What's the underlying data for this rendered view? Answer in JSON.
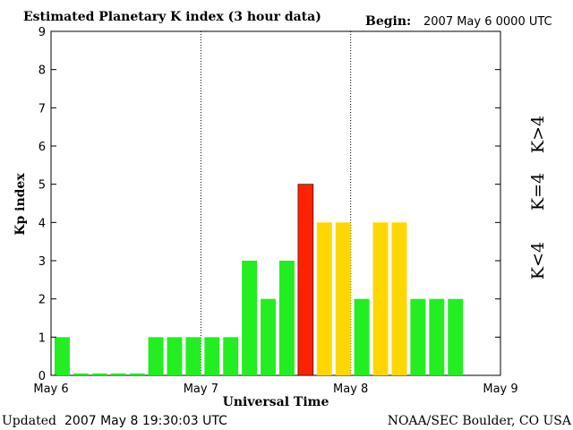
{
  "header": {
    "title": "Estimated Planetary K index (3 hour data)",
    "begin_label": "Begin:",
    "begin_value": "2007 May 6 0000 UTC"
  },
  "footer": {
    "updated_label": "Updated",
    "updated_value": "2007 May  8 19:30:03 UTC",
    "source": "NOAA/SEC Boulder, CO USA"
  },
  "legend": {
    "high": "K>4",
    "mid": "K=4",
    "low": "K<4"
  },
  "colors": {
    "low": "#22ee22",
    "mid": "#ffd700",
    "high": "#ff2200",
    "axis": "#000000",
    "divider": "#000000"
  },
  "chart_data": {
    "type": "bar",
    "title": "Estimated Planetary K index (3 hour data)",
    "xlabel": "Universal Time",
    "ylabel": "Kp index",
    "ylim": [
      0,
      9
    ],
    "yticks": [
      "0",
      "1",
      "2",
      "3",
      "4",
      "5",
      "6",
      "7",
      "8",
      "9"
    ],
    "xticks": [
      "May 6",
      "May 7",
      "May 8",
      "May 9"
    ],
    "slots_total": 24,
    "grid": false,
    "day_dividers": "dotted vertical lines at day boundaries",
    "values": [
      1,
      0.05,
      0.05,
      0.05,
      0.05,
      1,
      1,
      1,
      1,
      1,
      3,
      2,
      3,
      5,
      4,
      4,
      2,
      4,
      4,
      2,
      2,
      2
    ],
    "categories": [
      "May 6 00",
      "May 6 03",
      "May 6 06",
      "May 6 09",
      "May 6 12",
      "May 6 15",
      "May 6 18",
      "May 6 21",
      "May 7 00",
      "May 7 03",
      "May 7 06",
      "May 7 09",
      "May 7 12",
      "May 7 15",
      "May 7 18",
      "May 7 21",
      "May 8 00",
      "May 8 03",
      "May 8 06",
      "May 8 09",
      "May 8 12",
      "May 8 15"
    ],
    "color_rule": "green K<4, yellow K=4, red K>4"
  }
}
